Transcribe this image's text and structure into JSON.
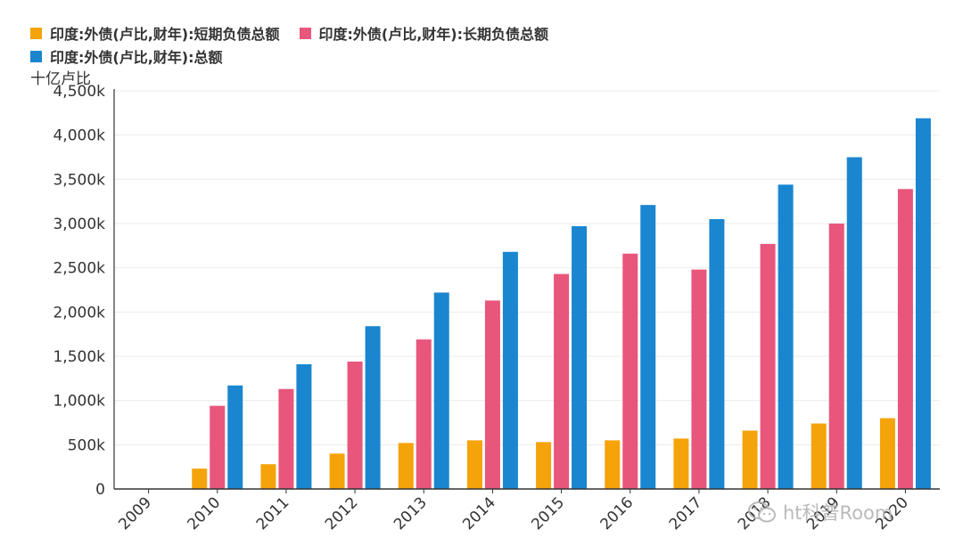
{
  "chart_data": {
    "type": "bar",
    "title": "",
    "ylabel": "十亿卢比",
    "xlabel": "",
    "ylim": [
      0,
      4500
    ],
    "yticks": [
      0,
      500,
      1000,
      1500,
      2000,
      2500,
      3000,
      3500,
      4000,
      4500
    ],
    "ytick_labels": [
      "0",
      "500k",
      "1,000k",
      "1,500k",
      "2,000k",
      "2,500k",
      "3,000k",
      "3,500k",
      "4,000k",
      "4,500k"
    ],
    "categories": [
      "2009",
      "2010",
      "2011",
      "2012",
      "2013",
      "2014",
      "2015",
      "2016",
      "2017",
      "2018",
      "2019",
      "2020"
    ],
    "series": [
      {
        "name": "印度:外债(卢比,财年):短期负债总额",
        "color": "#f5a30a",
        "values": [
          null,
          230,
          280,
          400,
          520,
          550,
          530,
          550,
          570,
          660,
          740,
          800
        ]
      },
      {
        "name": "印度:外债(卢比,财年):长期负债总额",
        "color": "#e8567c",
        "values": [
          null,
          940,
          1130,
          1440,
          1690,
          2130,
          2430,
          2660,
          2480,
          2770,
          3000,
          3390
        ]
      },
      {
        "name": "印度:外债(卢比,财年):总额",
        "color": "#1a86d0",
        "values": [
          null,
          1170,
          1410,
          1840,
          2220,
          2680,
          2970,
          3210,
          3050,
          3440,
          3750,
          4190
        ]
      }
    ]
  },
  "watermark": {
    "text": "ht科普Room",
    "icon": "wechat-icon"
  }
}
